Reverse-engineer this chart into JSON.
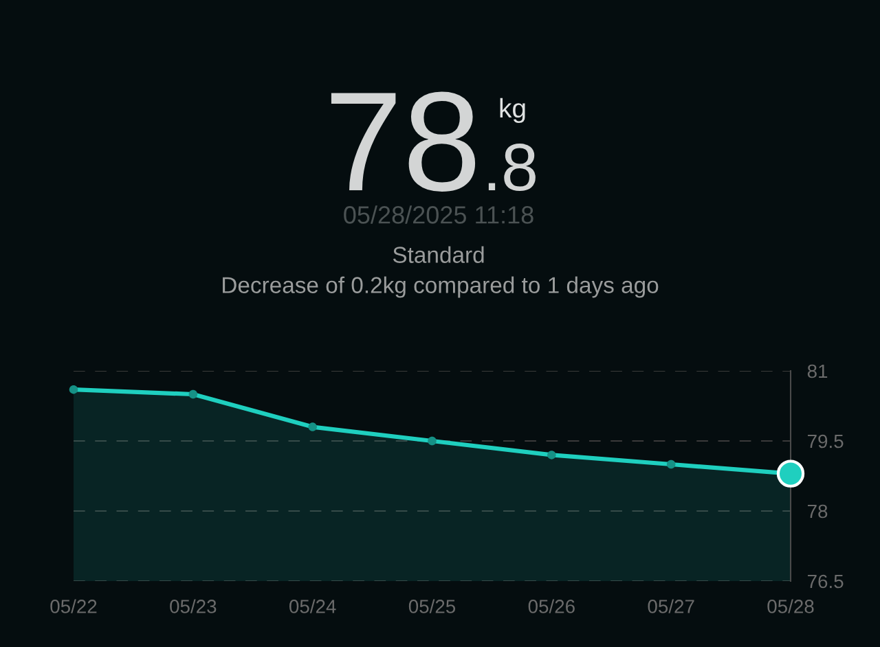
{
  "chart_data": {
    "type": "area",
    "title": "78",
    "subtitle": "05/28/2025 11:18",
    "annotations": [
      ".8",
      "kg",
      "Standard",
      "Decrease of 0.2kg compared to 1 days ago"
    ],
    "categories": [
      "05/22",
      "05/23",
      "05/24",
      "05/25",
      "05/26",
      "05/27",
      "05/28"
    ],
    "series": [
      {
        "color": "#1fcfbf",
        "values": [
          80.6,
          80.5,
          79.8,
          79.5,
          79.2,
          79.0,
          78.8
        ]
      },
      {
        "type": "scatter",
        "color": "#1fcfbf",
        "values": [
          null,
          null,
          null,
          null,
          null,
          null,
          78.8
        ]
      }
    ],
    "ylim": [
      76.5,
      81
    ],
    "yticks": [
      76.5,
      78,
      79.5,
      81
    ],
    "grid": "y",
    "marker": "circle",
    "line_style": "solid"
  }
}
